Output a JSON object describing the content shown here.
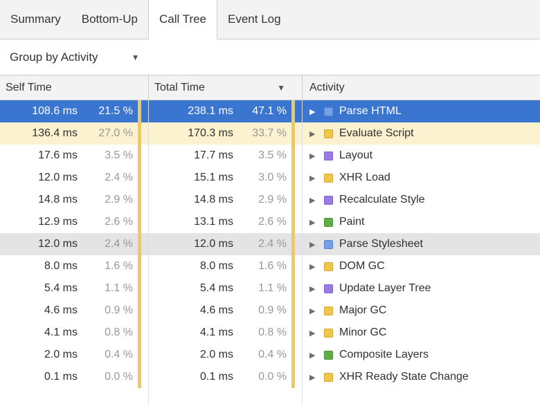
{
  "tabs": [
    {
      "label": "Summary",
      "selected": false
    },
    {
      "label": "Bottom-Up",
      "selected": false
    },
    {
      "label": "Call Tree",
      "selected": true
    },
    {
      "label": "Event Log",
      "selected": false
    }
  ],
  "toolbar": {
    "group_by_label": "Group by Activity"
  },
  "icons": {
    "dropdown_arrow": "▼",
    "sort_arrow": "▼",
    "expand_triangle": "▶"
  },
  "table": {
    "headers": {
      "self_time": "Self Time",
      "total_time": "Total Time",
      "activity": "Activity",
      "sorted_column": "Total Time"
    },
    "rows": [
      {
        "self_ms": "108.6 ms",
        "self_pct": "21.5 %",
        "total_ms": "238.1 ms",
        "total_pct": "47.1 %",
        "activity": "Parse HTML",
        "category": "loading",
        "state": "selected"
      },
      {
        "self_ms": "136.4 ms",
        "self_pct": "27.0 %",
        "total_ms": "170.3 ms",
        "total_pct": "33.7 %",
        "activity": "Evaluate Script",
        "category": "scripting",
        "state": "highlight-yellow"
      },
      {
        "self_ms": "17.6 ms",
        "self_pct": "3.5 %",
        "total_ms": "17.7 ms",
        "total_pct": "3.5 %",
        "activity": "Layout",
        "category": "rendering",
        "state": ""
      },
      {
        "self_ms": "12.0 ms",
        "self_pct": "2.4 %",
        "total_ms": "15.1 ms",
        "total_pct": "3.0 %",
        "activity": "XHR Load",
        "category": "scripting",
        "state": ""
      },
      {
        "self_ms": "14.8 ms",
        "self_pct": "2.9 %",
        "total_ms": "14.8 ms",
        "total_pct": "2.9 %",
        "activity": "Recalculate Style",
        "category": "rendering",
        "state": ""
      },
      {
        "self_ms": "12.9 ms",
        "self_pct": "2.6 %",
        "total_ms": "13.1 ms",
        "total_pct": "2.6 %",
        "activity": "Paint",
        "category": "painting",
        "state": ""
      },
      {
        "self_ms": "12.0 ms",
        "self_pct": "2.4 %",
        "total_ms": "12.0 ms",
        "total_pct": "2.4 %",
        "activity": "Parse Stylesheet",
        "category": "loading",
        "state": "highlight-gray"
      },
      {
        "self_ms": "8.0 ms",
        "self_pct": "1.6 %",
        "total_ms": "8.0 ms",
        "total_pct": "1.6 %",
        "activity": "DOM GC",
        "category": "scripting",
        "state": ""
      },
      {
        "self_ms": "5.4 ms",
        "self_pct": "1.1 %",
        "total_ms": "5.4 ms",
        "total_pct": "1.1 %",
        "activity": "Update Layer Tree",
        "category": "rendering",
        "state": ""
      },
      {
        "self_ms": "4.6 ms",
        "self_pct": "0.9 %",
        "total_ms": "4.6 ms",
        "total_pct": "0.9 %",
        "activity": "Major GC",
        "category": "scripting",
        "state": ""
      },
      {
        "self_ms": "4.1 ms",
        "self_pct": "0.8 %",
        "total_ms": "4.1 ms",
        "total_pct": "0.8 %",
        "activity": "Minor GC",
        "category": "scripting",
        "state": ""
      },
      {
        "self_ms": "2.0 ms",
        "self_pct": "0.4 %",
        "total_ms": "2.0 ms",
        "total_pct": "0.4 %",
        "activity": "Composite Layers",
        "category": "painting",
        "state": ""
      },
      {
        "self_ms": "0.1 ms",
        "self_pct": "0.0 %",
        "total_ms": "0.1 ms",
        "total_pct": "0.0 %",
        "activity": "XHR Ready State Change",
        "category": "scripting",
        "state": ""
      }
    ]
  },
  "colors": {
    "categories": {
      "loading": {
        "fill": "#74a0e8",
        "border": "#5c83c9"
      },
      "scripting": {
        "fill": "#f0c64a",
        "border": "#d4a73a"
      },
      "rendering": {
        "fill": "#9b7ce2",
        "border": "#7f63c4"
      },
      "painting": {
        "fill": "#60ad48",
        "border": "#4c9139"
      }
    },
    "percent_bar": "#eec95d",
    "selected_row": "#3a76d0",
    "highlight_yellow_row": "#fcf2d0",
    "highlight_gray_row": "#e4e4e4"
  }
}
